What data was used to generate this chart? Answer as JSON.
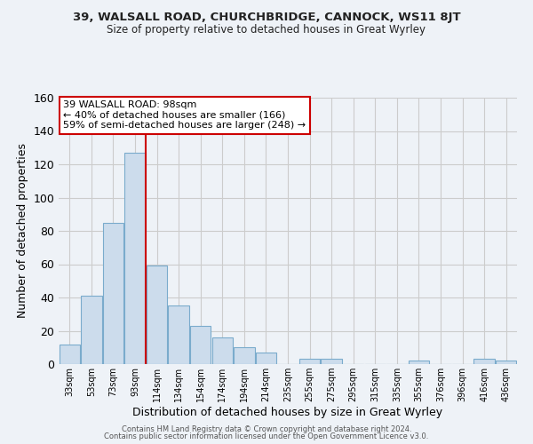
{
  "title": "39, WALSALL ROAD, CHURCHBRIDGE, CANNOCK, WS11 8JT",
  "subtitle": "Size of property relative to detached houses in Great Wyrley",
  "xlabel": "Distribution of detached houses by size in Great Wyrley",
  "ylabel": "Number of detached properties",
  "bar_color": "#ccdcec",
  "bar_edge_color": "#7aabcc",
  "categories": [
    "33sqm",
    "53sqm",
    "73sqm",
    "93sqm",
    "114sqm",
    "134sqm",
    "154sqm",
    "174sqm",
    "194sqm",
    "214sqm",
    "235sqm",
    "255sqm",
    "275sqm",
    "295sqm",
    "315sqm",
    "335sqm",
    "355sqm",
    "376sqm",
    "396sqm",
    "416sqm",
    "436sqm"
  ],
  "values": [
    12,
    41,
    85,
    127,
    59,
    35,
    23,
    16,
    10,
    7,
    0,
    3,
    3,
    0,
    0,
    0,
    2,
    0,
    0,
    3,
    2
  ],
  "vline_x": 3.5,
  "vline_color": "#cc0000",
  "annotation_title": "39 WALSALL ROAD: 98sqm",
  "annotation_line1": "← 40% of detached houses are smaller (166)",
  "annotation_line2": "59% of semi-detached houses are larger (248) →",
  "annotation_box_color": "#ffffff",
  "annotation_box_edge": "#cc0000",
  "ylim": [
    0,
    160
  ],
  "yticks": [
    0,
    20,
    40,
    60,
    80,
    100,
    120,
    140,
    160
  ],
  "grid_color": "#cccccc",
  "background_color": "#eef2f7",
  "footer1": "Contains HM Land Registry data © Crown copyright and database right 2024.",
  "footer2": "Contains public sector information licensed under the Open Government Licence v3.0."
}
